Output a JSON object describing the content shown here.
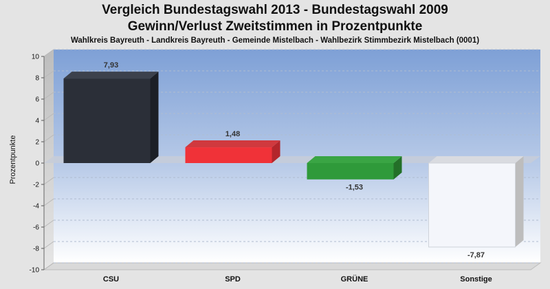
{
  "chart_data": {
    "type": "bar",
    "title": "Vergleich Bundestagswahl 2013 - Bundestagswahl 2009",
    "subtitle_line": "Gewinn/Verlust Zweitstimmen in Prozentpunkte",
    "caption": "Wahlkreis Bayreuth - Landkreis Bayreuth - Gemeinde Mistelbach - Wahlbezirk Stimmbezirk Mistelbach (0001)",
    "ylabel": "Prozentpunkte",
    "xlabel": "",
    "ylim": [
      -10,
      10
    ],
    "yticks": [
      10,
      8,
      6,
      4,
      2,
      0,
      -2,
      -4,
      -6,
      -8,
      -10
    ],
    "grid": true,
    "categories": [
      "CSU",
      "SPD",
      "GRÜNE",
      "Sonstige"
    ],
    "values": [
      7.93,
      1.48,
      -1.53,
      -7.87
    ],
    "value_labels": [
      "7,93",
      "1,48",
      "-1,53",
      "-7,87"
    ],
    "colors": [
      "#2b2f38",
      "#f03238",
      "#2f9a3a",
      "#f4f6fb"
    ],
    "side_colors": [
      "#1c1f26",
      "#b3262b",
      "#237028",
      "#bdbdbd"
    ],
    "top_colors": [
      "#3c414c",
      "#d0393e",
      "#3aa544",
      "#d9dbe0"
    ]
  }
}
